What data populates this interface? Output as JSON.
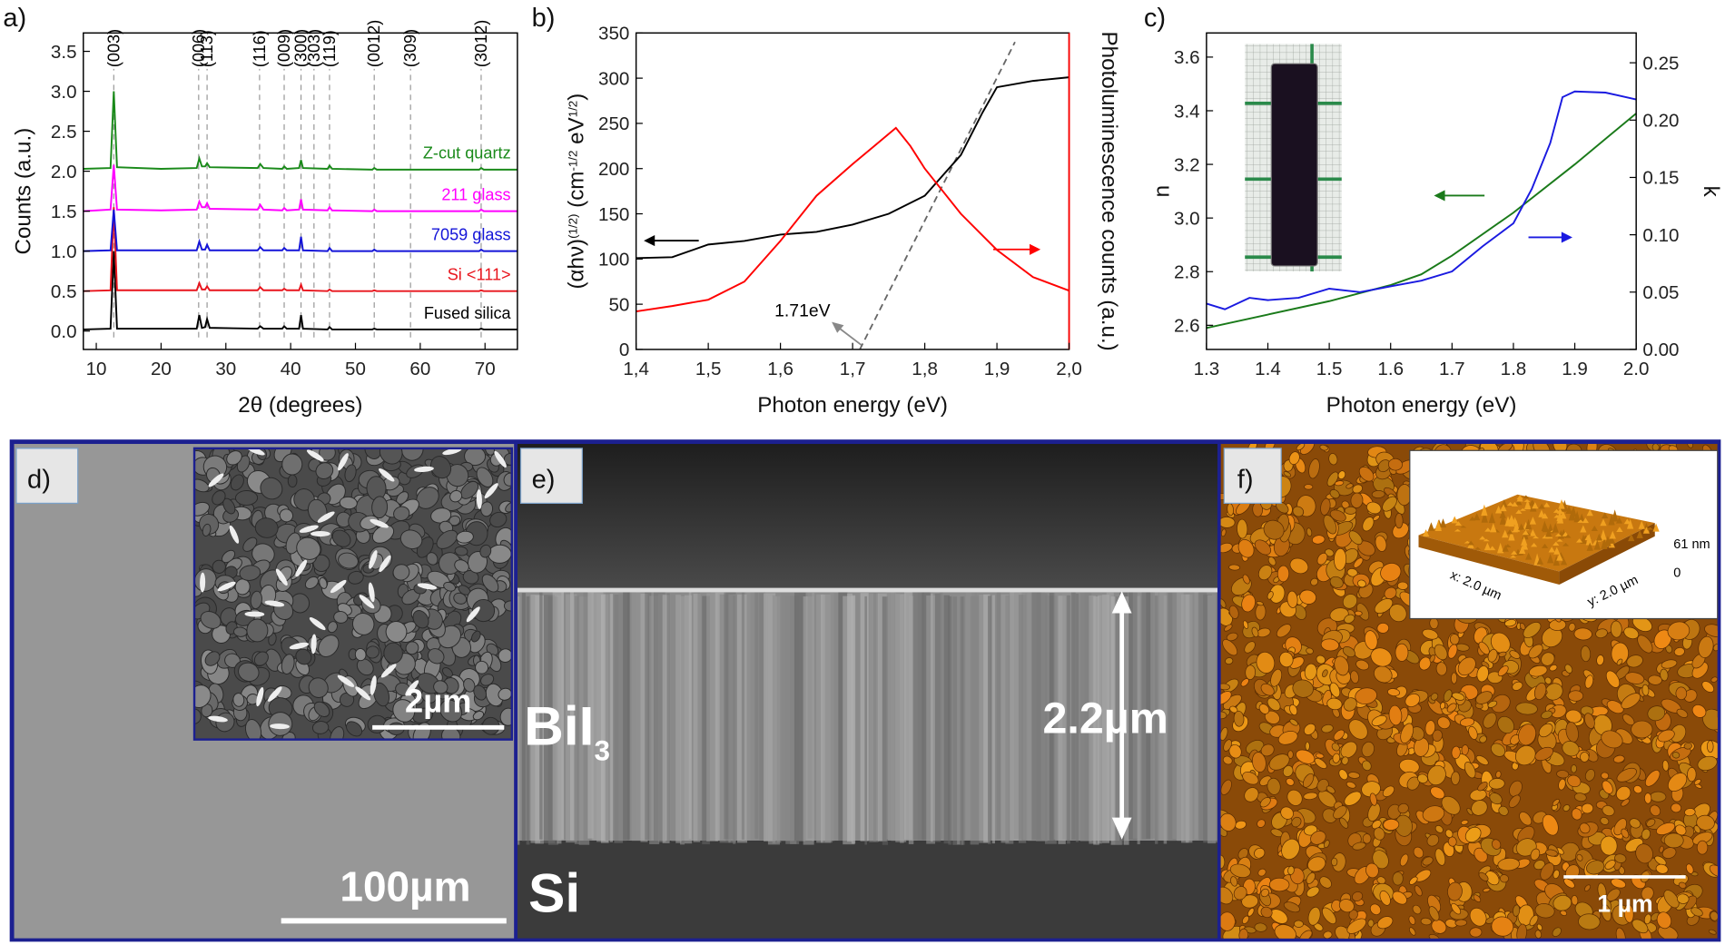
{
  "panel_labels": [
    "a)",
    "b)",
    "c)",
    "d)",
    "e)",
    "f)"
  ],
  "chart_data": [
    {
      "type": "line",
      "xlabel": "2θ (degrees)",
      "ylabel": "Counts (a.u.)",
      "xlim": [
        8,
        75
      ],
      "ylim": [
        -0.23,
        3.73
      ],
      "xticks": [
        10,
        20,
        30,
        40,
        50,
        60,
        70
      ],
      "yticks": [
        {
          "value": 0,
          "label": "0.0"
        },
        {
          "value": 0.5,
          "label": "0.5"
        },
        {
          "value": 1,
          "label": "1.0"
        },
        {
          "value": 1.5,
          "label": "1.5"
        },
        {
          "value": 2,
          "label": "2.0"
        },
        {
          "value": 2.5,
          "label": "2.5"
        },
        {
          "value": 3,
          "label": "3.0"
        },
        {
          "value": 3.5,
          "label": "3.5"
        }
      ],
      "legend": "inline",
      "x": [
        8,
        12.2,
        12.7,
        13.2,
        20,
        25.5,
        25.9,
        26.3,
        26.8,
        27.1,
        27.5,
        34.9,
        35.3,
        35.8,
        38.7,
        39,
        39.4,
        41.3,
        41.6,
        41.9,
        45.7,
        46,
        46.4,
        52.6,
        52.9,
        53.3,
        69.1,
        69.4,
        69.8,
        75
      ],
      "series": [
        {
          "name": "Fused silica",
          "color": "#000000",
          "values": [
            0.02,
            0.03,
            1.0,
            0.03,
            0.03,
            0.03,
            0.2,
            0.04,
            0.05,
            0.15,
            0.04,
            0.03,
            0.06,
            0.03,
            0.03,
            0.06,
            0.03,
            0.03,
            0.2,
            0.03,
            0.02,
            0.05,
            0.02,
            0.02,
            0.03,
            0.02,
            0.02,
            0.03,
            0.02,
            0.02
          ]
        },
        {
          "name": "Si <111>",
          "color": "#e8141c",
          "values": [
            0.5,
            0.51,
            1.55,
            0.51,
            0.51,
            0.51,
            0.6,
            0.52,
            0.52,
            0.56,
            0.51,
            0.51,
            0.55,
            0.51,
            0.51,
            0.53,
            0.51,
            0.51,
            0.58,
            0.51,
            0.5,
            0.52,
            0.5,
            0.5,
            0.51,
            0.5,
            0.5,
            0.51,
            0.5,
            0.5
          ]
        },
        {
          "name": "7059 glass",
          "color": "#1414d8",
          "values": [
            1.0,
            1.01,
            1.52,
            1.01,
            1.01,
            1.01,
            1.12,
            1.02,
            1.02,
            1.08,
            1.01,
            1.01,
            1.05,
            1.01,
            1.01,
            1.04,
            1.01,
            1.01,
            1.18,
            1.01,
            1.0,
            1.04,
            1.0,
            1.0,
            1.02,
            1.0,
            1.0,
            1.02,
            1.0,
            1.0
          ]
        },
        {
          "name": "211 glass",
          "color": "#ff00ff",
          "values": [
            1.5,
            1.52,
            2.08,
            1.52,
            1.51,
            1.52,
            1.62,
            1.55,
            1.55,
            1.6,
            1.53,
            1.52,
            1.58,
            1.52,
            1.51,
            1.54,
            1.51,
            1.52,
            1.65,
            1.52,
            1.51,
            1.55,
            1.51,
            1.5,
            1.52,
            1.5,
            1.5,
            1.52,
            1.5,
            1.5
          ]
        },
        {
          "name": "Z-cut quartz",
          "color": "#1a8a1a",
          "values": [
            2.03,
            2.04,
            3.0,
            2.05,
            2.03,
            2.04,
            2.16,
            2.06,
            2.06,
            2.1,
            2.05,
            2.04,
            2.09,
            2.04,
            2.03,
            2.06,
            2.03,
            2.04,
            2.14,
            2.04,
            2.03,
            2.07,
            2.03,
            2.02,
            2.04,
            2.02,
            2.02,
            2.04,
            2.02,
            2.02
          ]
        }
      ],
      "annotations": [
        {
          "text": "(003)",
          "x": 12.7
        },
        {
          "text": "(006)",
          "x": 25.8
        },
        {
          "text": "(113)",
          "x": 27.1
        },
        {
          "text": "(116)",
          "x": 35.2
        },
        {
          "text": "(009)",
          "x": 39.0
        },
        {
          "text": "(300)",
          "x": 41.6
        },
        {
          "text": "(303)",
          "x": 43.6
        },
        {
          "text": "(119)",
          "x": 46.0
        },
        {
          "text": "(0012)",
          "x": 52.9
        },
        {
          "text": "(309)",
          "x": 58.5
        },
        {
          "text": "(3012)",
          "x": 69.4
        }
      ]
    },
    {
      "type": "line",
      "xlabel": "Photon energy (eV)",
      "ylabel": [
        {
          "text": "(αhν)"
        },
        {
          "text": "(1/2)",
          "sup": true
        },
        {
          "text": " (cm"
        },
        {
          "text": "-1/2",
          "sup": true
        },
        {
          "text": " eV"
        },
        {
          "text": "1/2",
          "sup": true
        },
        {
          "text": ")"
        }
      ],
      "y2label": "Photoluminescence counts (a.u.)",
      "y2color": "#ff0000",
      "xlim": [
        1.4,
        2.0
      ],
      "ylim": [
        0,
        350
      ],
      "y2lim": [
        0,
        350
      ],
      "xticks": [
        {
          "value": 1.4,
          "label": "1,4"
        },
        {
          "value": 1.5,
          "label": "1,5"
        },
        {
          "value": 1.6,
          "label": "1,6"
        },
        {
          "value": 1.7,
          "label": "1,7"
        },
        {
          "value": 1.8,
          "label": "1,8"
        },
        {
          "value": 1.9,
          "label": "1,9"
        },
        {
          "value": 2.0,
          "label": "2,0"
        }
      ],
      "yticks": [
        0,
        50,
        100,
        150,
        200,
        250,
        300,
        350
      ],
      "series": [
        {
          "color": "#000000",
          "x": [
            1.4,
            1.45,
            1.5,
            1.55,
            1.6,
            1.65,
            1.7,
            1.75,
            1.8,
            1.85,
            1.88,
            1.9,
            1.95,
            2.0
          ],
          "values": [
            101,
            102,
            116,
            120,
            127,
            130,
            138,
            150,
            170,
            215,
            262,
            290,
            297,
            301
          ]
        },
        {
          "color": "#ff0000",
          "axis": "y2",
          "x": [
            1.4,
            1.45,
            1.5,
            1.55,
            1.6,
            1.65,
            1.7,
            1.73,
            1.76,
            1.78,
            1.8,
            1.85,
            1.9,
            1.95,
            2.0
          ],
          "values": [
            42,
            48,
            55,
            75,
            120,
            170,
            205,
            225,
            245,
            225,
            200,
            150,
            110,
            80,
            65
          ]
        }
      ],
      "fit_line": {
        "x": [
          1.71,
          1.925
        ],
        "y": [
          0,
          340
        ]
      },
      "annotation": "1.71eV"
    },
    {
      "type": "line",
      "xlabel": "Photon energy (eV)",
      "ylabel": "n",
      "y2label": "k",
      "xlim": [
        1.3,
        2.0
      ],
      "ylim": [
        2.51,
        3.69
      ],
      "y2lim": [
        0,
        0.276
      ],
      "xticks": [
        1.3,
        1.4,
        1.5,
        1.6,
        1.7,
        1.8,
        1.9,
        {
          "value": 2,
          "label": "2.0"
        }
      ],
      "yticks": [
        2.6,
        2.8,
        {
          "value": 3,
          "label": "3.0"
        },
        3.2,
        3.4,
        3.6
      ],
      "y2ticks": [
        {
          "value": 0,
          "label": "0.00"
        },
        {
          "value": 0.05,
          "label": "0.05"
        },
        {
          "value": 0.1,
          "label": "0.10"
        },
        {
          "value": 0.15,
          "label": "0.15"
        },
        {
          "value": 0.2,
          "label": "0.20"
        },
        {
          "value": 0.25,
          "label": "0.25"
        }
      ],
      "series": [
        {
          "color": "#1a7a1a",
          "x": [
            1.3,
            1.4,
            1.5,
            1.6,
            1.65,
            1.7,
            1.8,
            1.9,
            2.0
          ],
          "values": [
            2.59,
            2.64,
            2.69,
            2.75,
            2.79,
            2.86,
            3.02,
            3.2,
            3.39
          ]
        },
        {
          "color": "#1a1ae0",
          "axis": "y2",
          "x": [
            1.3,
            1.33,
            1.37,
            1.4,
            1.45,
            1.5,
            1.55,
            1.6,
            1.65,
            1.7,
            1.75,
            1.8,
            1.83,
            1.86,
            1.88,
            1.9,
            1.95,
            2.0
          ],
          "values": [
            0.04,
            0.035,
            0.045,
            0.043,
            0.045,
            0.053,
            0.05,
            0.055,
            0.06,
            0.068,
            0.09,
            0.11,
            0.14,
            0.18,
            0.22,
            0.225,
            0.224,
            0.218
          ]
        }
      ]
    }
  ],
  "images": {
    "d": {
      "inset_scale": "2µm",
      "scale": "100µm"
    },
    "e": {
      "film": "BiI",
      "film_sub": "3",
      "substrate": "Si",
      "thickness": "2.2µm"
    },
    "f": {
      "scale": "1 µm",
      "inset_z_max": "61 nm",
      "inset_z_min": "0",
      "inset_x": "x: 2.0 µm",
      "inset_y": "y: 2.0 µm"
    }
  }
}
